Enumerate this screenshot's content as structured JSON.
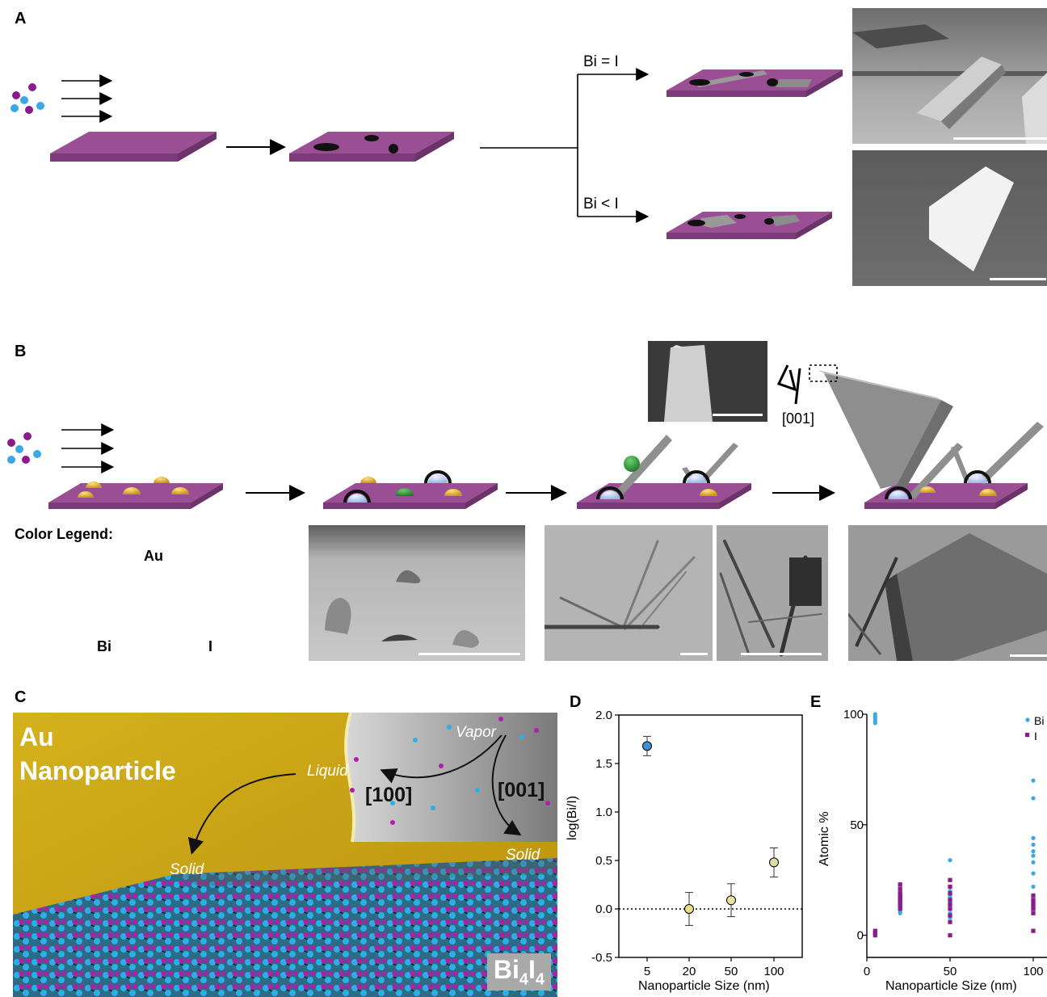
{
  "panels": {
    "a": "A",
    "b": "B",
    "c": "C",
    "d": "D",
    "e": "E"
  },
  "panelA": {
    "branch_top": "Bi = I",
    "branch_bottom": "Bi < I"
  },
  "panelB": {
    "direction_label": "[001]",
    "legend_title": "Color Legend:",
    "legend_au": "Au",
    "legend_bi": "Bi",
    "legend_i": "I"
  },
  "panelC": {
    "title_line1": "Au",
    "title_line2": "Nanoparticle",
    "vapor": "Vapor",
    "liquid": "Liquid",
    "dir100": "[100]",
    "dir001": "[001]",
    "solid_left": "Solid",
    "solid_right": "Solid",
    "compound_main": "Bi",
    "compound_sub1": "4",
    "compound_mid": "I",
    "compound_sub2": "4"
  },
  "colors": {
    "substrate": "#9a4f95",
    "gold": "#e2b52f",
    "bi_blue": "#3aa8e6",
    "i_purple": "#8b1a8c"
  },
  "chartD": {
    "type": "scatter",
    "ylabel": "log(Bi/I)",
    "xlabel": "Nanoparticle Size (nm)",
    "categories": [
      "5",
      "20",
      "50",
      "100"
    ],
    "y_ticks": [
      "2.0",
      "1.5",
      "1.0",
      "0.5",
      "0.0",
      "-0.5"
    ],
    "ylim": [
      -0.5,
      2.0
    ],
    "values": [
      1.68,
      0.0,
      0.09,
      0.48
    ],
    "errors": [
      0.1,
      0.17,
      0.17,
      0.15
    ],
    "point_colors": [
      "#3e8fd6",
      "#e8dd8a",
      "#ece3a2",
      "#e0dca8"
    ]
  },
  "chartE": {
    "type": "scatter",
    "ylabel": "Atomic %",
    "xlabel": "Nanoparticle Size (nm)",
    "x_ticks": [
      "0",
      "50",
      "100"
    ],
    "y_ticks": [
      "100",
      "50",
      "0"
    ],
    "ylim": [
      -10,
      100
    ],
    "series": [
      {
        "name": "Bi",
        "color": "#3aa8e6",
        "x": [
          5,
          5,
          5,
          5,
          5,
          20,
          20,
          20,
          20,
          20,
          20,
          20,
          20,
          20,
          20,
          50,
          50,
          50,
          50,
          50,
          50,
          50,
          50,
          50,
          50,
          50,
          50,
          100,
          100,
          100,
          100,
          100,
          100,
          100,
          100,
          100,
          100,
          100,
          100
        ],
        "y": [
          96,
          97,
          98,
          99,
          100,
          10,
          11,
          12,
          13,
          14,
          15,
          16,
          17,
          18,
          20,
          8,
          9,
          10,
          12,
          13,
          14,
          15,
          16,
          17,
          18,
          20,
          34,
          70,
          62,
          44,
          41,
          38,
          36,
          33,
          28,
          22,
          18,
          14,
          12
        ]
      },
      {
        "name": "I",
        "color": "#8b1a8c",
        "x": [
          5,
          5,
          5,
          20,
          20,
          20,
          20,
          20,
          20,
          20,
          20,
          20,
          20,
          50,
          50,
          50,
          50,
          50,
          50,
          50,
          50,
          50,
          100,
          100,
          100,
          100,
          100,
          100,
          100,
          100
        ],
        "y": [
          0,
          1,
          2,
          12,
          13,
          14,
          15,
          16,
          17,
          18,
          19,
          21,
          23,
          0,
          6,
          9,
          12,
          14,
          16,
          19,
          22,
          25,
          2,
          10,
          12,
          13,
          14,
          15,
          16,
          18
        ]
      }
    ]
  }
}
